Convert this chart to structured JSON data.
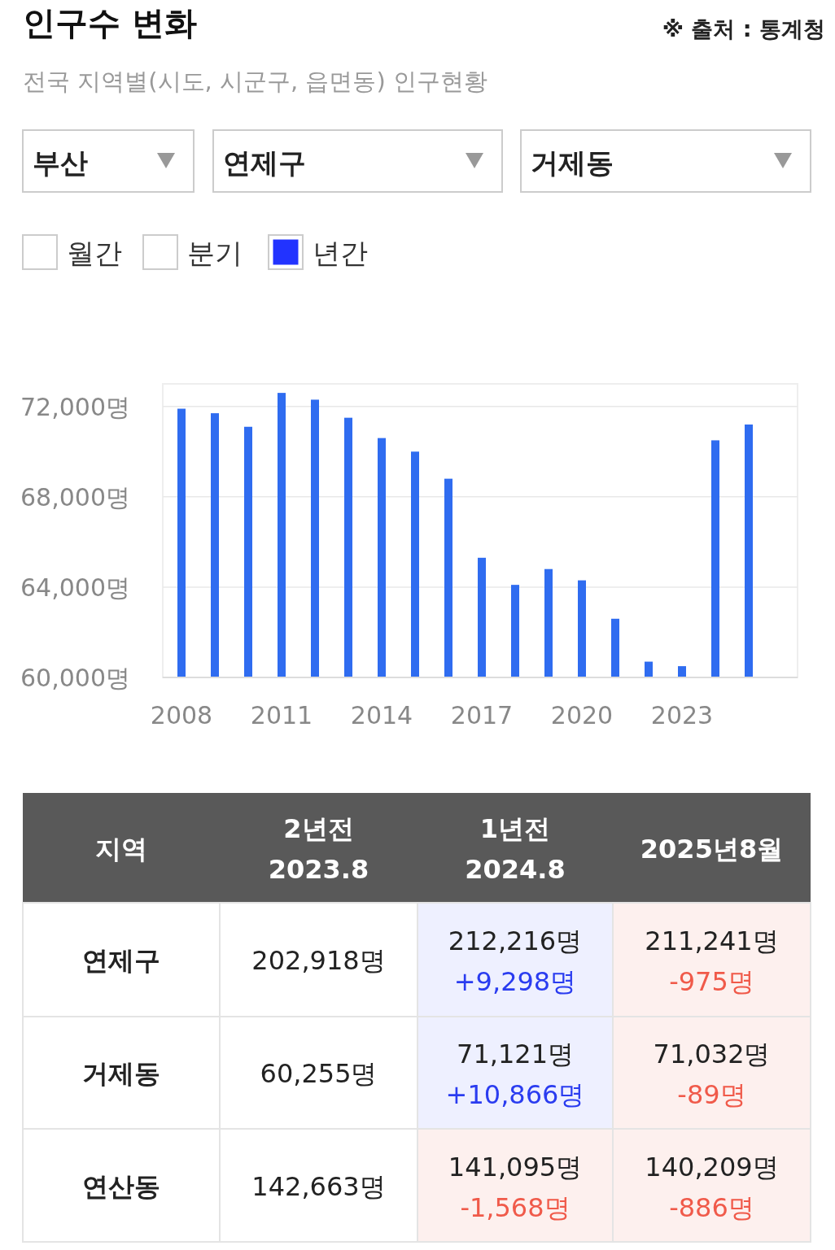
{
  "chart_data": {
    "type": "bar",
    "title": "인구수 변화",
    "subtitle": "전국 지역별(시도, 시군구, 읍면동) 인구현황",
    "categories": [
      "2008",
      null,
      null,
      "2011",
      null,
      null,
      "2014",
      null,
      null,
      "2017",
      null,
      null,
      "2020",
      null,
      null,
      "2023",
      null,
      null
    ],
    "values": [
      71900,
      71700,
      71100,
      72600,
      72300,
      71500,
      70600,
      70000,
      68800,
      65300,
      64100,
      64800,
      64300,
      62600,
      60700,
      60500,
      70500,
      71200
    ],
    "color": "#2f6cf0",
    "ylim": [
      60000,
      73000
    ],
    "yticks": [
      {
        "value": 60000,
        "label": "60,000명"
      },
      {
        "value": 64000,
        "label": "64,000명"
      },
      {
        "value": 68000,
        "label": "68,000명"
      },
      {
        "value": 72000,
        "label": "72,000명"
      }
    ],
    "grid": "y",
    "annotations": [
      "※ 출처 : 통계청",
      "부산",
      "연제구",
      "거제동",
      "월간",
      "분기",
      "년간",
      "지역",
      "2년전\n2023.8",
      "1년전\n2024.8",
      "2025년8월",
      "연제구",
      "202,918명",
      "212,216명",
      "+9,298명",
      "211,241명",
      "-975명",
      "거제동",
      "60,255명",
      "71,121명",
      "+10,866명",
      "71,032명",
      "-89명",
      "연산동",
      "142,663명",
      "141,095명",
      "-1,568명",
      "140,209명",
      "-886명"
    ]
  }
}
